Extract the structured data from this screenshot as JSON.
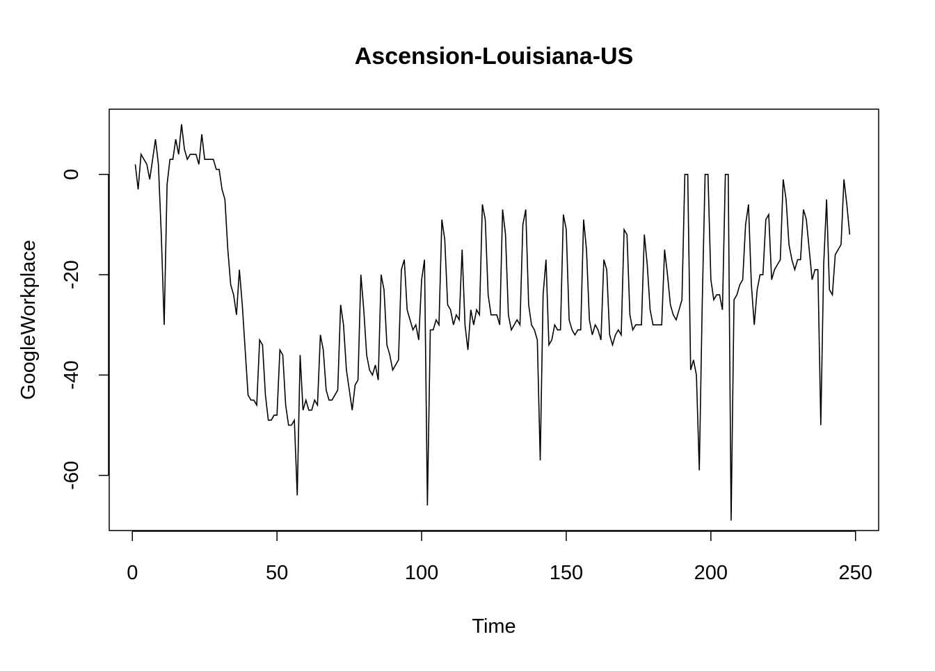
{
  "chart_data": {
    "type": "line",
    "title": "Ascension-Louisiana-US",
    "xlabel": "Time",
    "ylabel": "GoogleWorkplace",
    "xlim": [
      -8,
      258
    ],
    "ylim": [
      -71,
      13
    ],
    "xticks": [
      0,
      50,
      100,
      150,
      200,
      250
    ],
    "yticks": [
      0,
      -20,
      -40,
      -60
    ],
    "grid": false,
    "series": [
      {
        "color": "#000000",
        "x_start": 1,
        "values": [
          2,
          -3,
          4,
          3,
          2,
          -1,
          3,
          7,
          2,
          -12,
          -30,
          -2,
          3,
          3,
          7,
          4,
          10,
          5,
          3,
          4,
          4,
          4,
          2,
          8,
          3,
          3,
          3,
          3,
          1,
          1,
          -3,
          -5,
          -15,
          -22,
          -24,
          -28,
          -19,
          -26,
          -35,
          -44,
          -45,
          -45,
          -46,
          -33,
          -34,
          -44,
          -49,
          -49,
          -48,
          -48,
          -35,
          -36,
          -46,
          -50,
          -50,
          -49,
          -64,
          -36,
          -47,
          -45,
          -47,
          -47,
          -45,
          -46,
          -32,
          -35,
          -43,
          -45,
          -45,
          -44,
          -43,
          -26,
          -30,
          -39,
          -43,
          -47,
          -42,
          -41,
          -20,
          -27,
          -36,
          -39,
          -40,
          -38,
          -41,
          -20,
          -23,
          -34,
          -36,
          -39,
          -38,
          -37,
          -19,
          -17,
          -27,
          -29,
          -31,
          -30,
          -33,
          -21,
          -17,
          -66,
          -31,
          -31,
          -29,
          -30,
          -9,
          -13,
          -26,
          -27,
          -30,
          -28,
          -29,
          -15,
          -30,
          -35,
          -27,
          -30,
          -27,
          -28,
          -6,
          -9,
          -24,
          -28,
          -28,
          -28,
          -30,
          -7,
          -12,
          -28,
          -31,
          -30,
          -29,
          -30,
          -10,
          -7,
          -26,
          -30,
          -31,
          -33,
          -57,
          -24,
          -17,
          -34,
          -33,
          -30,
          -31,
          -31,
          -8,
          -11,
          -29,
          -31,
          -32,
          -31,
          -31,
          -9,
          -15,
          -29,
          -32,
          -30,
          -31,
          -33,
          -17,
          -19,
          -32,
          -34,
          -32,
          -31,
          -32,
          -11,
          -12,
          -28,
          -31,
          -30,
          -30,
          -30,
          -12,
          -18,
          -27,
          -30,
          -30,
          -30,
          -30,
          -15,
          -20,
          -26,
          -28,
          -29,
          -27,
          -25,
          0,
          0,
          -39,
          -37,
          -40,
          -59,
          -26,
          0,
          0,
          -21,
          -25,
          -24,
          -24,
          -27,
          0,
          0,
          -69,
          -25,
          -24,
          -22,
          -21,
          -10,
          -6,
          -22,
          -30,
          -23,
          -20,
          -20,
          -9,
          -8,
          -21,
          -19,
          -18,
          -17,
          -1,
          -5,
          -14,
          -17,
          -19,
          -17,
          -17,
          -7,
          -9,
          -15,
          -21,
          -19,
          -19,
          -50,
          -18,
          -5,
          -23,
          -24,
          -16,
          -15,
          -14,
          -1,
          -6,
          -12
        ]
      }
    ]
  }
}
